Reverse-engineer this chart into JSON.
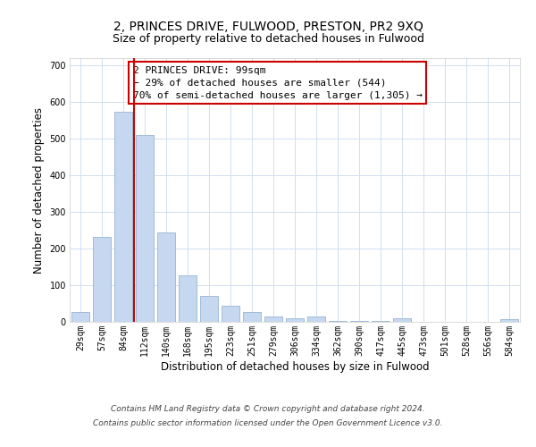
{
  "title": "2, PRINCES DRIVE, FULWOOD, PRESTON, PR2 9XQ",
  "subtitle": "Size of property relative to detached houses in Fulwood",
  "xlabel": "Distribution of detached houses by size in Fulwood",
  "ylabel": "Number of detached properties",
  "categories": [
    "29sqm",
    "57sqm",
    "84sqm",
    "112sqm",
    "140sqm",
    "168sqm",
    "195sqm",
    "223sqm",
    "251sqm",
    "279sqm",
    "306sqm",
    "334sqm",
    "362sqm",
    "390sqm",
    "417sqm",
    "445sqm",
    "473sqm",
    "501sqm",
    "528sqm",
    "556sqm",
    "584sqm"
  ],
  "values": [
    28,
    233,
    573,
    510,
    244,
    126,
    70,
    43,
    27,
    14,
    9,
    14,
    3,
    3,
    3,
    9,
    0,
    0,
    0,
    0,
    7
  ],
  "bar_color": "#c5d8f0",
  "bar_edge_color": "#a0bcd8",
  "vline_x_index": 2,
  "vline_color": "#cc0000",
  "annotation_text": "2 PRINCES DRIVE: 99sqm\n← 29% of detached houses are smaller (544)\n70% of semi-detached houses are larger (1,305) →",
  "annotation_box_color": "#ffffff",
  "annotation_box_edge": "#cc0000",
  "ylim": [
    0,
    720
  ],
  "yticks": [
    0,
    100,
    200,
    300,
    400,
    500,
    600,
    700
  ],
  "footer_line1": "Contains HM Land Registry data © Crown copyright and database right 2024.",
  "footer_line2": "Contains public sector information licensed under the Open Government Licence v3.0.",
  "bg_color": "#ffffff",
  "grid_color": "#d0dff0",
  "title_fontsize": 10,
  "subtitle_fontsize": 9,
  "label_fontsize": 8.5,
  "tick_fontsize": 7,
  "annotation_fontsize": 8,
  "footer_fontsize": 6.5
}
